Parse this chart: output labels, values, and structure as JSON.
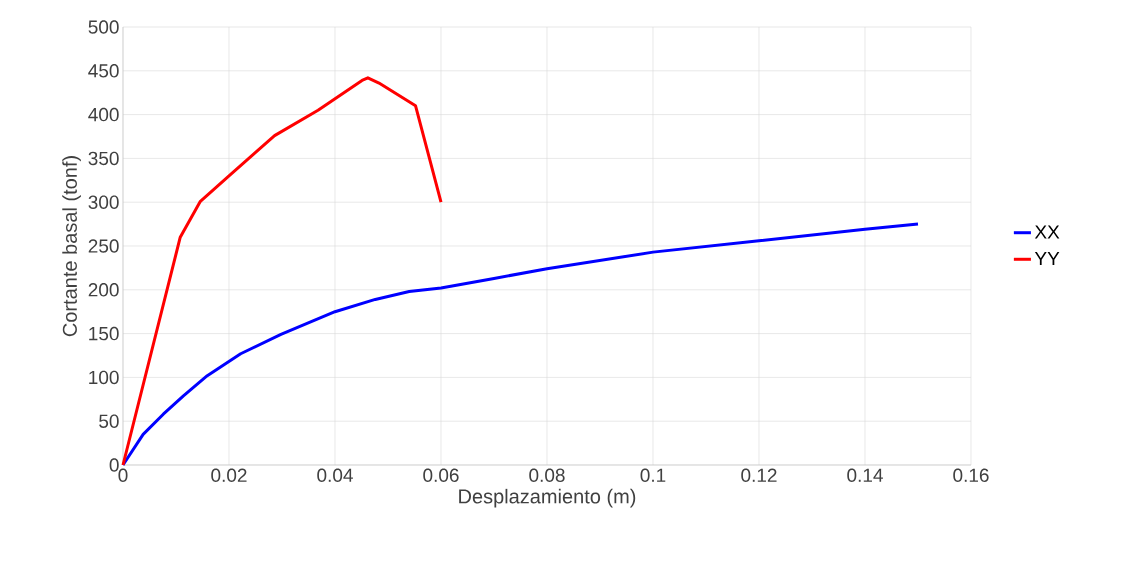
{
  "chart_data": {
    "type": "line",
    "xlabel": "Desplazamiento (m)",
    "ylabel": "Cortante basal (tonf)",
    "xlim": [
      0,
      0.16
    ],
    "xticks": [
      0,
      0.02,
      0.04,
      0.06,
      0.08,
      0.1,
      0.12,
      0.14,
      0.16
    ],
    "ylim": [
      0,
      500
    ],
    "yticks": [
      0,
      50,
      100,
      150,
      200,
      250,
      300,
      350,
      400,
      450,
      500
    ],
    "grid": true,
    "legend": "right",
    "marker": "none",
    "line_style": "solid",
    "series": [
      {
        "name": "XX",
        "color": "#0000ff",
        "x": [
          0,
          0.0038,
          0.0076,
          0.0114,
          0.0159,
          0.0222,
          0.0298,
          0.04,
          0.0476,
          0.054,
          0.06,
          0.07,
          0.08,
          0.1,
          0.12,
          0.14,
          0.15
        ],
        "values": [
          0,
          35,
          58,
          79,
          102,
          127,
          149,
          175,
          189,
          198,
          202,
          213,
          224,
          243,
          256,
          269,
          275
        ]
      },
      {
        "name": "YY",
        "color": "#ff0000",
        "x": [
          0,
          0.0108,
          0.0146,
          0.02,
          0.0286,
          0.0368,
          0.0451,
          0.0462,
          0.0483,
          0.0552,
          0.06
        ],
        "values": [
          0,
          260,
          301,
          330,
          376,
          405,
          439,
          442,
          436,
          410,
          300
        ]
      }
    ]
  }
}
